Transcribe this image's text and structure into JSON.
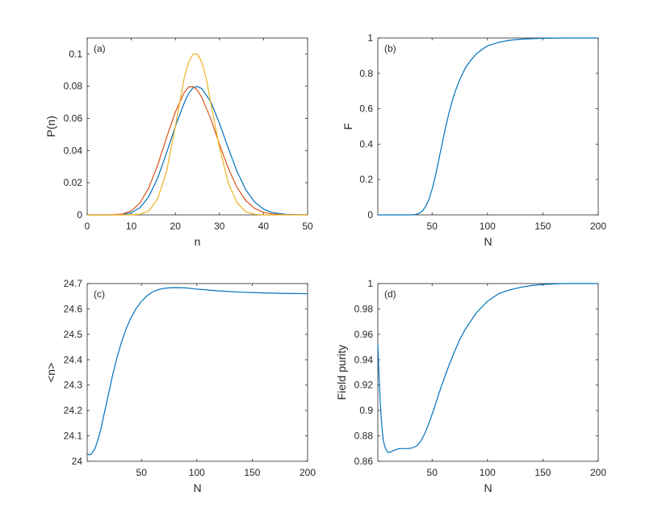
{
  "colors": {
    "blue": "#0072BD",
    "orange": "#D95319",
    "yellow": "#EDB120",
    "axis": "#262626"
  },
  "chart_data": [
    {
      "id": "a",
      "type": "line",
      "panel_label": "(a)",
      "xlabel": "n",
      "ylabel": "P(n)",
      "xlim": [
        0,
        50
      ],
      "ylim": [
        0,
        0.11
      ],
      "xticks": [
        0,
        10,
        20,
        30,
        40,
        50
      ],
      "xtick_labels": [
        "0",
        "10",
        "20",
        "30",
        "40",
        "50"
      ],
      "yticks": [
        0,
        0.02,
        0.04,
        0.06,
        0.08,
        0.1
      ],
      "ytick_labels": [
        "0",
        "0.02",
        "0.04",
        "0.06",
        "0.08",
        "0.1"
      ],
      "series": [
        {
          "color": "blue",
          "x": [
            0,
            5,
            8,
            10,
            12,
            14,
            16,
            18,
            20,
            22,
            23,
            24,
            25,
            26,
            28,
            30,
            32,
            34,
            36,
            38,
            40,
            42,
            45,
            50
          ],
          "y": [
            0,
            0,
            0.0002,
            0.0013,
            0.0045,
            0.0115,
            0.023,
            0.0385,
            0.055,
            0.0695,
            0.0755,
            0.079,
            0.0798,
            0.0785,
            0.0705,
            0.057,
            0.0415,
            0.027,
            0.0155,
            0.008,
            0.0036,
            0.0014,
            0.0003,
            0
          ]
        },
        {
          "color": "orange",
          "x": [
            0,
            5,
            8,
            10,
            12,
            14,
            16,
            18,
            20,
            22,
            23,
            24,
            25,
            26,
            28,
            30,
            32,
            34,
            36,
            38,
            40,
            42,
            45,
            50
          ],
          "y": [
            0,
            0,
            0.0005,
            0.0025,
            0.0075,
            0.017,
            0.031,
            0.048,
            0.064,
            0.076,
            0.0795,
            0.0798,
            0.0775,
            0.073,
            0.06,
            0.044,
            0.029,
            0.017,
            0.0088,
            0.004,
            0.0016,
            0.0006,
            0.0001,
            0
          ]
        },
        {
          "color": "yellow",
          "x": [
            0,
            10,
            12,
            14,
            16,
            18,
            20,
            21,
            22,
            23,
            24,
            25,
            26,
            27,
            28,
            30,
            32,
            34,
            36,
            38,
            40,
            50
          ],
          "y": [
            0,
            0,
            0.0004,
            0.0025,
            0.01,
            0.027,
            0.055,
            0.07,
            0.085,
            0.095,
            0.1,
            0.1,
            0.095,
            0.085,
            0.07,
            0.042,
            0.02,
            0.0075,
            0.002,
            0.0004,
            0,
            0
          ]
        }
      ]
    },
    {
      "id": "b",
      "type": "line",
      "panel_label": "(b)",
      "xlabel": "N",
      "ylabel": "F",
      "xlim": [
        1,
        200
      ],
      "ylim": [
        0,
        1
      ],
      "xticks": [
        50,
        100,
        150,
        200
      ],
      "xtick_labels": [
        "50",
        "100",
        "150",
        "200"
      ],
      "yticks": [
        0,
        0.2,
        0.4,
        0.6,
        0.8,
        1
      ],
      "ytick_labels": [
        "0",
        "0.2",
        "0.4",
        "0.6",
        "0.8",
        "1"
      ],
      "series": [
        {
          "color": "blue",
          "x": [
            1,
            20,
            30,
            35,
            38,
            41,
            44,
            47,
            50,
            53,
            56,
            59,
            62,
            65,
            68,
            71,
            75,
            80,
            85,
            90,
            95,
            100,
            110,
            120,
            130,
            140,
            150,
            170,
            200
          ],
          "y": [
            0,
            0,
            0,
            0.002,
            0.008,
            0.02,
            0.045,
            0.085,
            0.145,
            0.22,
            0.31,
            0.4,
            0.49,
            0.57,
            0.64,
            0.7,
            0.765,
            0.83,
            0.875,
            0.91,
            0.935,
            0.955,
            0.975,
            0.987,
            0.993,
            0.996,
            0.998,
            1,
            1
          ]
        }
      ]
    },
    {
      "id": "c",
      "type": "line",
      "panel_label": "(c)",
      "xlabel": "N",
      "ylabel": "<n>",
      "xlim": [
        1,
        200
      ],
      "ylim": [
        24,
        24.7
      ],
      "xticks": [
        50,
        100,
        150,
        200
      ],
      "xtick_labels": [
        "50",
        "100",
        "150",
        "200"
      ],
      "yticks": [
        24,
        24.1,
        24.2,
        24.3,
        24.4,
        24.5,
        24.6,
        24.7
      ],
      "ytick_labels": [
        "24",
        "24.1",
        "24.2",
        "24.3",
        "24.4",
        "24.5",
        "24.6",
        "24.7"
      ],
      "series": [
        {
          "color": "blue",
          "x": [
            1,
            3,
            5,
            8,
            10,
            13,
            16,
            20,
            24,
            28,
            32,
            36,
            40,
            45,
            50,
            55,
            60,
            65,
            70,
            75,
            80,
            90,
            100,
            120,
            140,
            160,
            180,
            200
          ],
          "y": [
            24.03,
            24.025,
            24.03,
            24.05,
            24.075,
            24.12,
            24.18,
            24.26,
            24.34,
            24.41,
            24.47,
            24.52,
            24.56,
            24.6,
            24.63,
            24.652,
            24.667,
            24.676,
            24.681,
            24.683,
            24.684,
            24.683,
            24.678,
            24.671,
            24.666,
            24.663,
            24.661,
            24.66
          ]
        }
      ]
    },
    {
      "id": "d",
      "type": "line",
      "panel_label": "(d)",
      "xlabel": "N",
      "ylabel": "Field purity",
      "xlim": [
        1,
        200
      ],
      "ylim": [
        0.86,
        1
      ],
      "xticks": [
        50,
        100,
        150,
        200
      ],
      "xtick_labels": [
        "50",
        "100",
        "150",
        "200"
      ],
      "yticks": [
        0.86,
        0.88,
        0.9,
        0.92,
        0.94,
        0.96,
        0.98,
        1
      ],
      "ytick_labels": [
        "0.86",
        "0.88",
        "0.9",
        "0.92",
        "0.94",
        "0.96",
        "0.98",
        "1"
      ],
      "series": [
        {
          "color": "blue",
          "x": [
            1,
            2,
            3,
            4,
            5,
            6,
            8,
            10,
            12,
            14,
            17,
            20,
            24,
            28,
            32,
            36,
            40,
            44,
            48,
            52,
            56,
            60,
            65,
            70,
            75,
            80,
            90,
            100,
            110,
            120,
            130,
            140,
            150,
            170,
            200
          ],
          "y": [
            0.952,
            0.93,
            0.91,
            0.895,
            0.884,
            0.876,
            0.87,
            0.867,
            0.867,
            0.868,
            0.869,
            0.87,
            0.87,
            0.87,
            0.8705,
            0.872,
            0.876,
            0.883,
            0.892,
            0.902,
            0.913,
            0.923,
            0.935,
            0.946,
            0.956,
            0.964,
            0.977,
            0.986,
            0.992,
            0.995,
            0.997,
            0.9985,
            0.9993,
            1,
            1
          ]
        }
      ]
    }
  ]
}
